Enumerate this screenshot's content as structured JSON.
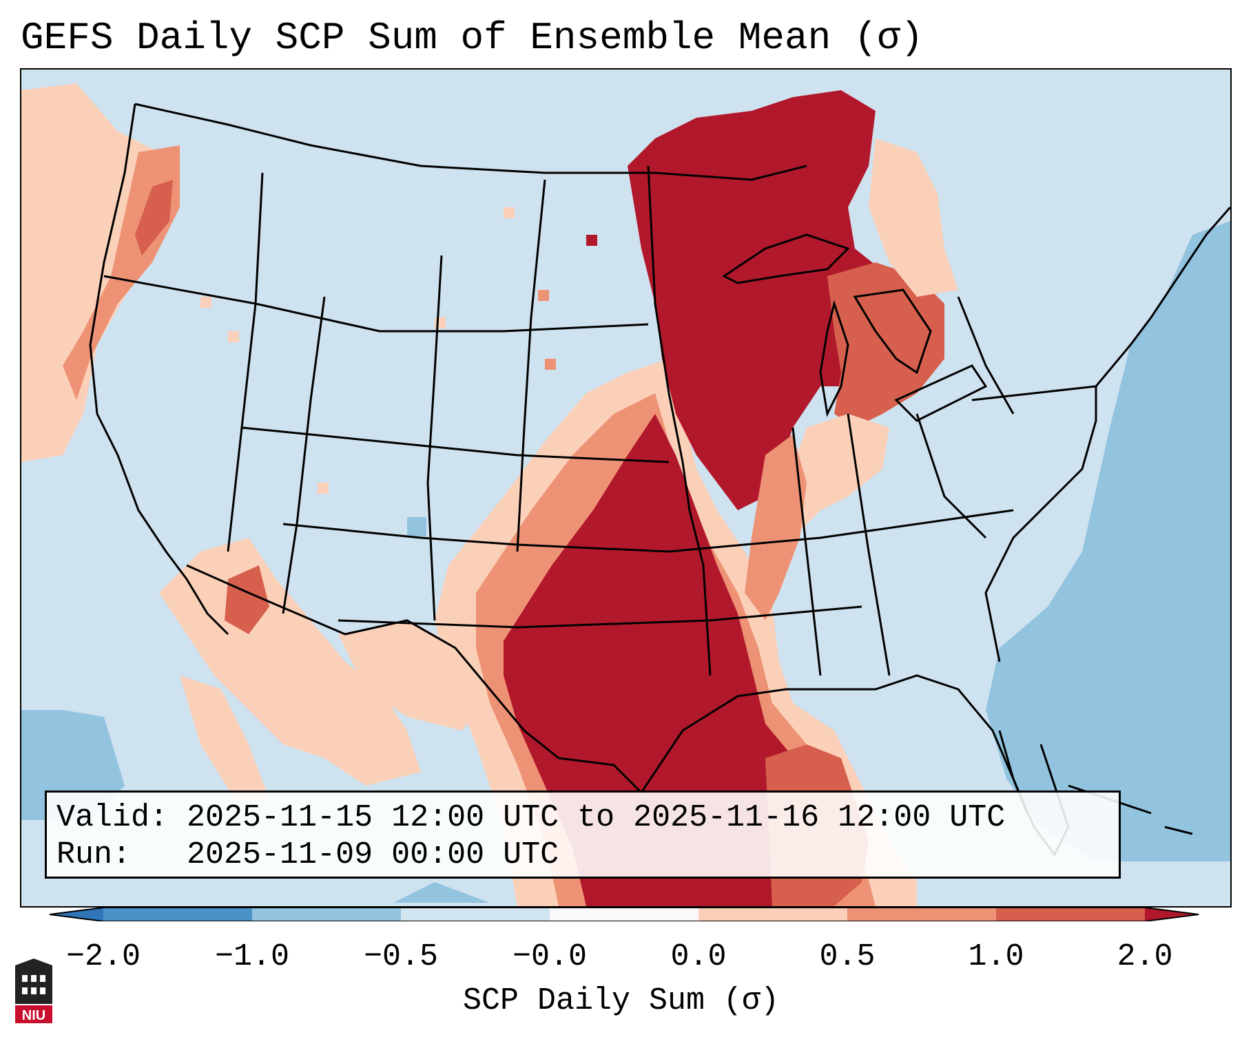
{
  "title": "GEFS Daily SCP Sum of Ensemble Mean (σ)",
  "info": {
    "valid_line": "Valid: 2025-11-15 12:00 UTC to 2025-11-16 12:00 UTC",
    "run_line": "Run:   2025-11-09 00:00 UTC"
  },
  "colorbar": {
    "title": "SCP Daily Sum (σ)",
    "tick_labels": [
      "−2.0",
      "−1.0",
      "−0.5",
      "−0.0",
      "0.0",
      "0.5",
      "1.0",
      "2.0"
    ],
    "colors": [
      "#2f75b8",
      "#4a93c9",
      "#93c4df",
      "#d1e5f0",
      "#f9f9f9",
      "#fbd0b9",
      "#ee9275",
      "#d6604d",
      "#b2182b"
    ]
  },
  "legend_colors": {
    "ocean_low": "#93c4df",
    "land_base": "#cfe2ef",
    "slight_pos": "#fbd0b9",
    "mod_pos": "#ee9275",
    "high_pos": "#d6604d",
    "max_pos": "#b2182b"
  },
  "logo": {
    "text": "NIU"
  }
}
